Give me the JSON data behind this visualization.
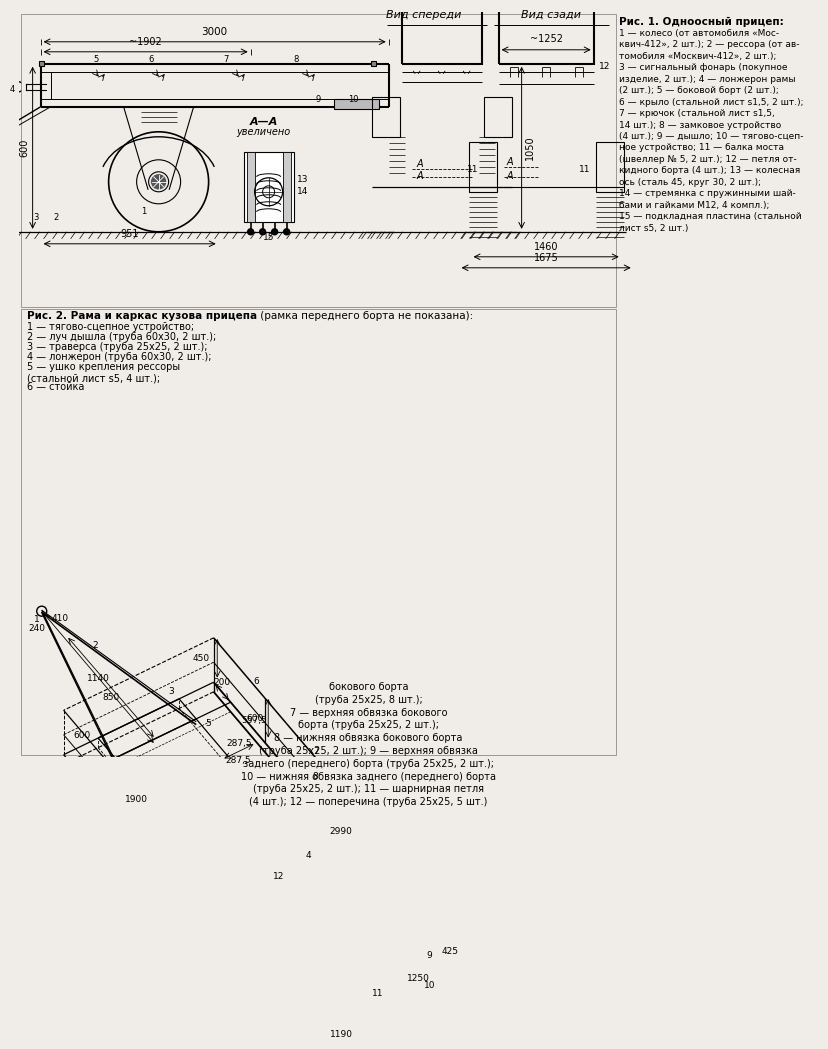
{
  "bg_color": "#f0ede8",
  "fig_width": 8.0,
  "fig_height": 7.45,
  "title1": "Рис. 1. Одноосный прицеп:",
  "title2_bold": "Рис. 2. Рама и каркас кузова прицепа",
  "title2_normal": " (рамка переднего борта не показана):",
  "legend1_text": "1 — колесо (от автомобиля «Мос-\nквич-412», 2 шт.); 2 — рессора (от ав-\nтомобиля «Москвич-412», 2 шт.);\n3 — сигнальный фонарь (покупное\nизделие, 2 шт.); 4 — лонжерон рамы\n(2 шт.); 5 — боковой борт (2 шт.);\n6 — крыло (стальной лист s1,5, 2 шт.);\n7 — крючок (стальной лист s1,5,\n14 шт.); 8 — замковое устройство\n(4 шт.); 9 — дышло; 10 — тягово-сцеп-\nное устройство; 11 — балка моста\n(швеллер № 5, 2 шт.); 12 — петля от-\nкидного борта (4 шт.); 13 — колесная\nось (сталь 45, круг 30, 2 шт.);\n14 — стремянка с пружинными шай-\nбами и гайками М12, 4 компл.);\n15 — подкладная пластина (стальной\nлист s5, 2 шт.)",
  "legend2_items": [
    "1 — тягово-сцепное устройство;",
    "2 — луч дышла (труба 60х30, 2 шт.);",
    "3 — траверса (труба 25х25, 2 шт.);",
    "4 — лонжерон (труба 60х30, 2 шт.);",
    "5 — ушко крепления рессоры\n(стальной лист s5, 4 шт.);",
    "6 — стойка"
  ],
  "legend3_text": "бокового борта\n(труба 25х25, 8 шт.);\n7 — верхняя обвязка бокового\nборта (труба 25х25, 2 шт.);\n8 — нижняя обвязка бокового борта\n(труба 25х25, 2 шт.); 9 — верхняя обвязка\nзаднего (переднего) борта (труба 25х25, 2 шт.);\n10 — нижняя обвязка заднего (переднего) борта\n(труба 25х25, 2 шт.); 11 — шарнирная петля\n(4 шт.); 12 — поперечина (труба 25х25, 5 шт.)"
}
